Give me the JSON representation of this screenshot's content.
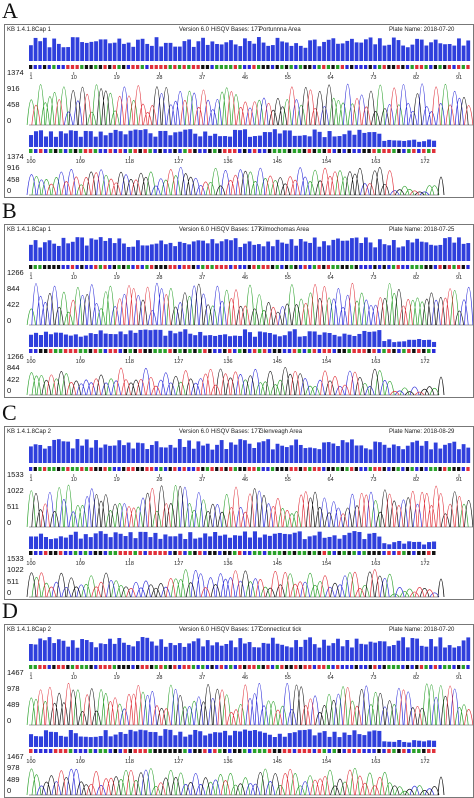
{
  "panels": [
    {
      "letter": "A",
      "header": {
        "kb": "KB 1.4.1.8",
        "cap": "Cap 1",
        "version": "Version 6.0",
        "qv": "HiSQV Bases: 177",
        "area": "Portunnna Area",
        "plate": "Plate Name: 2018-07-20"
      },
      "row1": {
        "ticks": [
          "1",
          "10",
          "19",
          "28",
          "37",
          "46",
          "55",
          "64",
          "73",
          "82",
          "91"
        ],
        "yticks": [
          "1374",
          "916",
          "458",
          "0"
        ]
      },
      "row2": {
        "ticks": [
          "100",
          "109",
          "118",
          "127",
          "136",
          "145",
          "154",
          "163",
          "172"
        ],
        "yticks": [
          "1374",
          "916",
          "458",
          "0"
        ]
      }
    },
    {
      "letter": "B",
      "header": {
        "kb": "KB 1.4.1.8",
        "cap": "Cap 1",
        "version": "Version 6.0",
        "qv": "HiSQV Bases: 177",
        "area": "Kilmochomas Area",
        "plate": "Plate Name: 2018-07-25"
      },
      "row1": {
        "ticks": [
          "1",
          "10",
          "19",
          "28",
          "37",
          "46",
          "55",
          "64",
          "73",
          "82",
          "91"
        ],
        "yticks": [
          "1266",
          "844",
          "422",
          "0"
        ]
      },
      "row2": {
        "ticks": [
          "100",
          "109",
          "118",
          "127",
          "136",
          "145",
          "154",
          "163",
          "172"
        ],
        "yticks": [
          "1266",
          "844",
          "422",
          "0"
        ]
      }
    },
    {
      "letter": "C",
      "header": {
        "kb": "KB 1.4.1.8",
        "cap": "Cap 2",
        "version": "Version 6.0",
        "qv": "HiSQV Bases: 177",
        "area": "Glenveagh Area",
        "plate": "Plate Name: 2018-08-29"
      },
      "row1": {
        "ticks": [
          "1",
          "10",
          "19",
          "28",
          "37",
          "46",
          "55",
          "64",
          "73",
          "82",
          "91"
        ],
        "yticks": [
          "1533",
          "1022",
          "511",
          "0"
        ]
      },
      "row2": {
        "ticks": [
          "100",
          "109",
          "118",
          "127",
          "136",
          "145",
          "154",
          "163",
          "172"
        ],
        "yticks": [
          "1533",
          "1022",
          "511",
          "0"
        ]
      }
    },
    {
      "letter": "D",
      "header": {
        "kb": "KB 1.4.1.8",
        "cap": "Cap 2",
        "version": "Version 6.0",
        "qv": "HiSQV Bases: 177",
        "area": "Connecticut tick",
        "plate": "Plate Name: 2018-07-20"
      },
      "row1": {
        "ticks": [
          "1",
          "10",
          "19",
          "28",
          "37",
          "46",
          "55",
          "64",
          "73",
          "82",
          "91"
        ],
        "yticks": [
          "1467",
          "978",
          "489",
          "0"
        ]
      },
      "row2": {
        "ticks": [
          "100",
          "109",
          "118",
          "127",
          "136",
          "145",
          "154",
          "163",
          "172"
        ],
        "yticks": [
          "1467",
          "978",
          "489",
          "0"
        ]
      }
    }
  ],
  "colors": {
    "quality": "#2f3fdc",
    "A": "#2aa02a",
    "C": "#2b2bd9",
    "G": "#111111",
    "T": "#e0303a",
    "N": "#c9a400"
  }
}
